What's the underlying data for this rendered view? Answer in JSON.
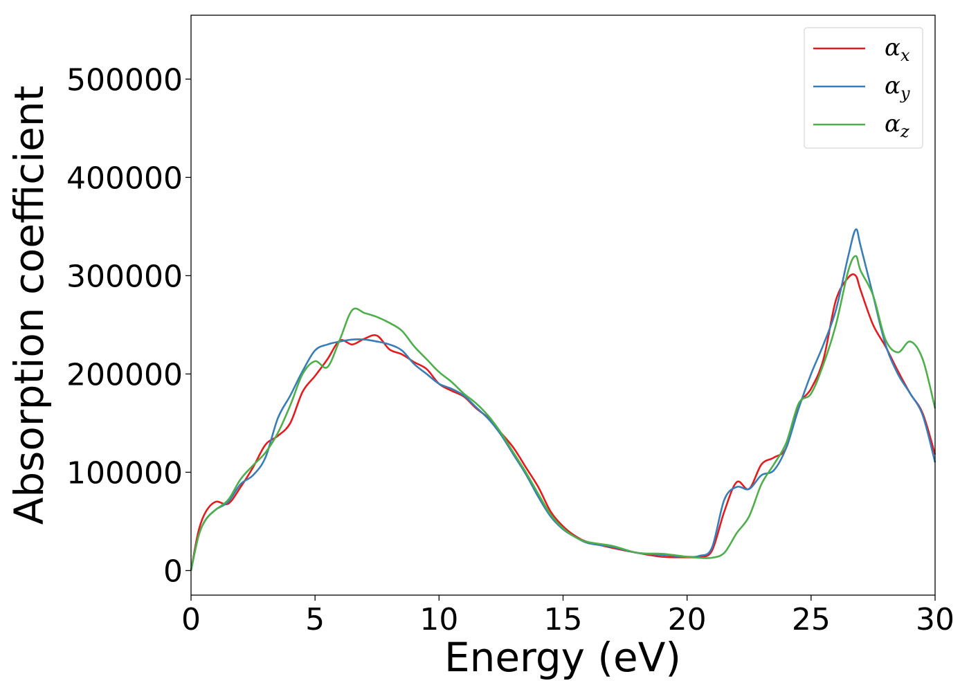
{
  "chart_data": {
    "type": "line",
    "title": "",
    "xlabel": "Energy (eV)",
    "ylabel": "Absorption coefficient",
    "xlim": [
      0,
      30
    ],
    "ylim": [
      -25000,
      565000
    ],
    "x_ticks": [
      0,
      5,
      10,
      15,
      20,
      25,
      30
    ],
    "y_ticks": [
      0,
      100000,
      200000,
      300000,
      400000,
      500000
    ],
    "grid": false,
    "legend": {
      "placement": "top-right",
      "entries": [
        {
          "symbol": "α",
          "subscript": "x",
          "color": "#e41a1c"
        },
        {
          "symbol": "α",
          "subscript": "y",
          "color": "#377eb8"
        },
        {
          "symbol": "α",
          "subscript": "z",
          "color": "#4daf4a"
        }
      ]
    },
    "series": [
      {
        "key": "alpha_x",
        "color": "#e41a1c",
        "x": [
          0,
          0.3,
          0.6,
          1.0,
          1.5,
          2.0,
          2.5,
          3.0,
          3.5,
          4.0,
          4.5,
          5.0,
          5.5,
          6.0,
          6.5,
          7.0,
          7.5,
          8.0,
          8.5,
          9.0,
          9.5,
          10.0,
          10.5,
          11.0,
          11.5,
          12.0,
          12.5,
          13.0,
          13.5,
          14.0,
          14.5,
          15.0,
          15.5,
          16.0,
          17.0,
          18.0,
          19.0,
          20.0,
          20.5,
          21.0,
          21.5,
          22.0,
          22.5,
          23.0,
          23.5,
          24.0,
          24.5,
          25.0,
          25.5,
          26.0,
          26.5,
          26.8,
          27.0,
          27.5,
          28.0,
          28.5,
          29.0,
          29.5,
          30.0
        ],
        "y": [
          0,
          40000,
          60000,
          70000,
          68000,
          85000,
          105000,
          128000,
          137000,
          150000,
          182000,
          198000,
          215000,
          234000,
          230000,
          236000,
          239000,
          225000,
          220000,
          212000,
          205000,
          190000,
          183000,
          177000,
          165000,
          155000,
          140000,
          125000,
          105000,
          85000,
          60000,
          45000,
          35000,
          29000,
          23000,
          18000,
          14000,
          13500,
          14000,
          20000,
          60000,
          90000,
          83000,
          108000,
          115000,
          125000,
          168000,
          185000,
          215000,
          275000,
          298000,
          300000,
          285000,
          250000,
          228000,
          203000,
          180000,
          160000,
          118000
        ]
      },
      {
        "key": "alpha_y",
        "color": "#377eb8",
        "x": [
          0,
          0.3,
          0.6,
          1.0,
          1.5,
          2.0,
          2.5,
          3.0,
          3.5,
          4.0,
          4.5,
          5.0,
          5.5,
          6.0,
          6.5,
          7.0,
          7.5,
          8.0,
          8.5,
          9.0,
          9.5,
          10.0,
          10.5,
          11.0,
          11.5,
          12.0,
          12.5,
          13.0,
          13.5,
          14.0,
          14.5,
          15.0,
          15.5,
          16.0,
          17.0,
          18.0,
          19.0,
          20.0,
          20.5,
          21.0,
          21.5,
          22.0,
          22.5,
          23.0,
          23.5,
          24.0,
          24.5,
          25.0,
          25.5,
          26.0,
          26.5,
          26.8,
          27.0,
          27.5,
          28.0,
          28.5,
          29.0,
          29.5,
          30.0
        ],
        "y": [
          0,
          35000,
          52000,
          62000,
          70000,
          88000,
          97000,
          115000,
          155000,
          178000,
          203000,
          224000,
          230000,
          233000,
          235000,
          235000,
          233000,
          230000,
          224000,
          210000,
          200000,
          190000,
          185000,
          178000,
          166000,
          154000,
          138000,
          118000,
          98000,
          75000,
          55000,
          42000,
          34000,
          28000,
          24000,
          18000,
          16000,
          14000,
          15000,
          23000,
          72000,
          85000,
          83000,
          97000,
          102000,
          125000,
          165000,
          200000,
          230000,
          265000,
          320000,
          347000,
          330000,
          280000,
          230000,
          200000,
          180000,
          158000,
          110000
        ]
      },
      {
        "key": "alpha_z",
        "color": "#4daf4a",
        "x": [
          0,
          0.3,
          0.6,
          1.0,
          1.5,
          2.0,
          2.5,
          3.0,
          3.5,
          4.0,
          4.5,
          5.0,
          5.5,
          6.0,
          6.5,
          7.0,
          7.5,
          8.0,
          8.5,
          9.0,
          9.5,
          10.0,
          10.5,
          11.0,
          11.5,
          12.0,
          12.5,
          13.0,
          13.5,
          14.0,
          14.5,
          15.0,
          15.5,
          16.0,
          17.0,
          18.0,
          19.0,
          20.0,
          20.5,
          21.0,
          21.5,
          22.0,
          22.5,
          23.0,
          23.5,
          24.0,
          24.5,
          25.0,
          25.5,
          26.0,
          26.5,
          26.8,
          27.0,
          27.5,
          28.0,
          28.5,
          29.0,
          29.5,
          30.0
        ],
        "y": [
          0,
          35000,
          52000,
          62000,
          72000,
          93000,
          107000,
          120000,
          140000,
          168000,
          200000,
          213000,
          207000,
          235000,
          265000,
          262000,
          258000,
          252000,
          244000,
          228000,
          215000,
          202000,
          192000,
          180000,
          170000,
          157000,
          140000,
          120000,
          100000,
          78000,
          57000,
          43000,
          34000,
          29000,
          25000,
          18000,
          17000,
          14000,
          13000,
          13000,
          18000,
          38000,
          55000,
          88000,
          108000,
          130000,
          170000,
          180000,
          210000,
          250000,
          305000,
          320000,
          305000,
          280000,
          235000,
          222000,
          233000,
          215000,
          165000
        ]
      }
    ]
  }
}
